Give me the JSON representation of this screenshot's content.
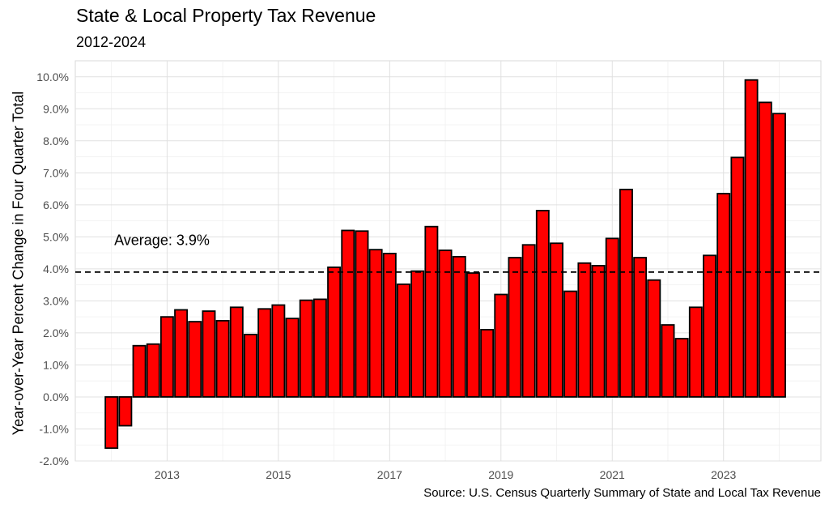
{
  "chart_data": {
    "type": "bar",
    "title": "State & Local Property Tax Revenue",
    "subtitle": "2012-2024",
    "ylabel": "Year-over-Year Percent Change in Four Quarter Total",
    "xlabel": "",
    "caption": "Source: U.S. Census Quarterly Summary of State and Local Tax Revenue",
    "ylim": [
      -2.0,
      10.5
    ],
    "yticks": [
      -2.0,
      -1.0,
      0.0,
      1.0,
      2.0,
      3.0,
      4.0,
      5.0,
      6.0,
      7.0,
      8.0,
      9.0,
      10.0
    ],
    "ytick_labels": [
      "-2.0%",
      "-1.0%",
      "0.0%",
      "1.0%",
      "2.0%",
      "3.0%",
      "4.0%",
      "5.0%",
      "6.0%",
      "7.0%",
      "8.0%",
      "9.0%",
      "10.0%"
    ],
    "xlim": [
      2011.35,
      2024.75
    ],
    "xticks": [
      2013,
      2015,
      2017,
      2019,
      2021,
      2023
    ],
    "xtick_labels": [
      "2013",
      "2015",
      "2017",
      "2019",
      "2021",
      "2023"
    ],
    "x": [
      2012.0,
      2012.25,
      2012.5,
      2012.75,
      2013.0,
      2013.25,
      2013.5,
      2013.75,
      2014.0,
      2014.25,
      2014.5,
      2014.75,
      2015.0,
      2015.25,
      2015.5,
      2015.75,
      2016.0,
      2016.25,
      2016.5,
      2016.75,
      2017.0,
      2017.25,
      2017.5,
      2017.75,
      2018.0,
      2018.25,
      2018.5,
      2018.75,
      2019.0,
      2019.25,
      2019.5,
      2019.75,
      2020.0,
      2020.25,
      2020.5,
      2020.75,
      2021.0,
      2021.25,
      2021.5,
      2021.75,
      2022.0,
      2022.25,
      2022.5,
      2022.75,
      2023.0,
      2023.25,
      2023.5,
      2023.75,
      2024.0
    ],
    "values": [
      -1.6,
      -0.9,
      1.6,
      1.65,
      2.5,
      2.72,
      2.35,
      2.68,
      2.38,
      2.8,
      1.95,
      2.75,
      2.87,
      2.45,
      3.02,
      3.05,
      4.05,
      5.2,
      5.18,
      4.6,
      4.48,
      3.52,
      3.93,
      5.32,
      4.58,
      4.38,
      3.87,
      2.1,
      3.2,
      4.35,
      4.75,
      5.82,
      4.8,
      3.3,
      4.18,
      4.1,
      4.95,
      6.48,
      4.35,
      3.65,
      2.25,
      1.82,
      2.8,
      4.42,
      6.35,
      7.48,
      9.9,
      9.2,
      8.85
    ],
    "bar_color": "#ff0000",
    "bar_edge_color": "#000000",
    "average": {
      "value": 3.9,
      "label": "Average: 3.9%",
      "label_x": 2012.05,
      "label_y": 4.9
    },
    "grid": true
  }
}
